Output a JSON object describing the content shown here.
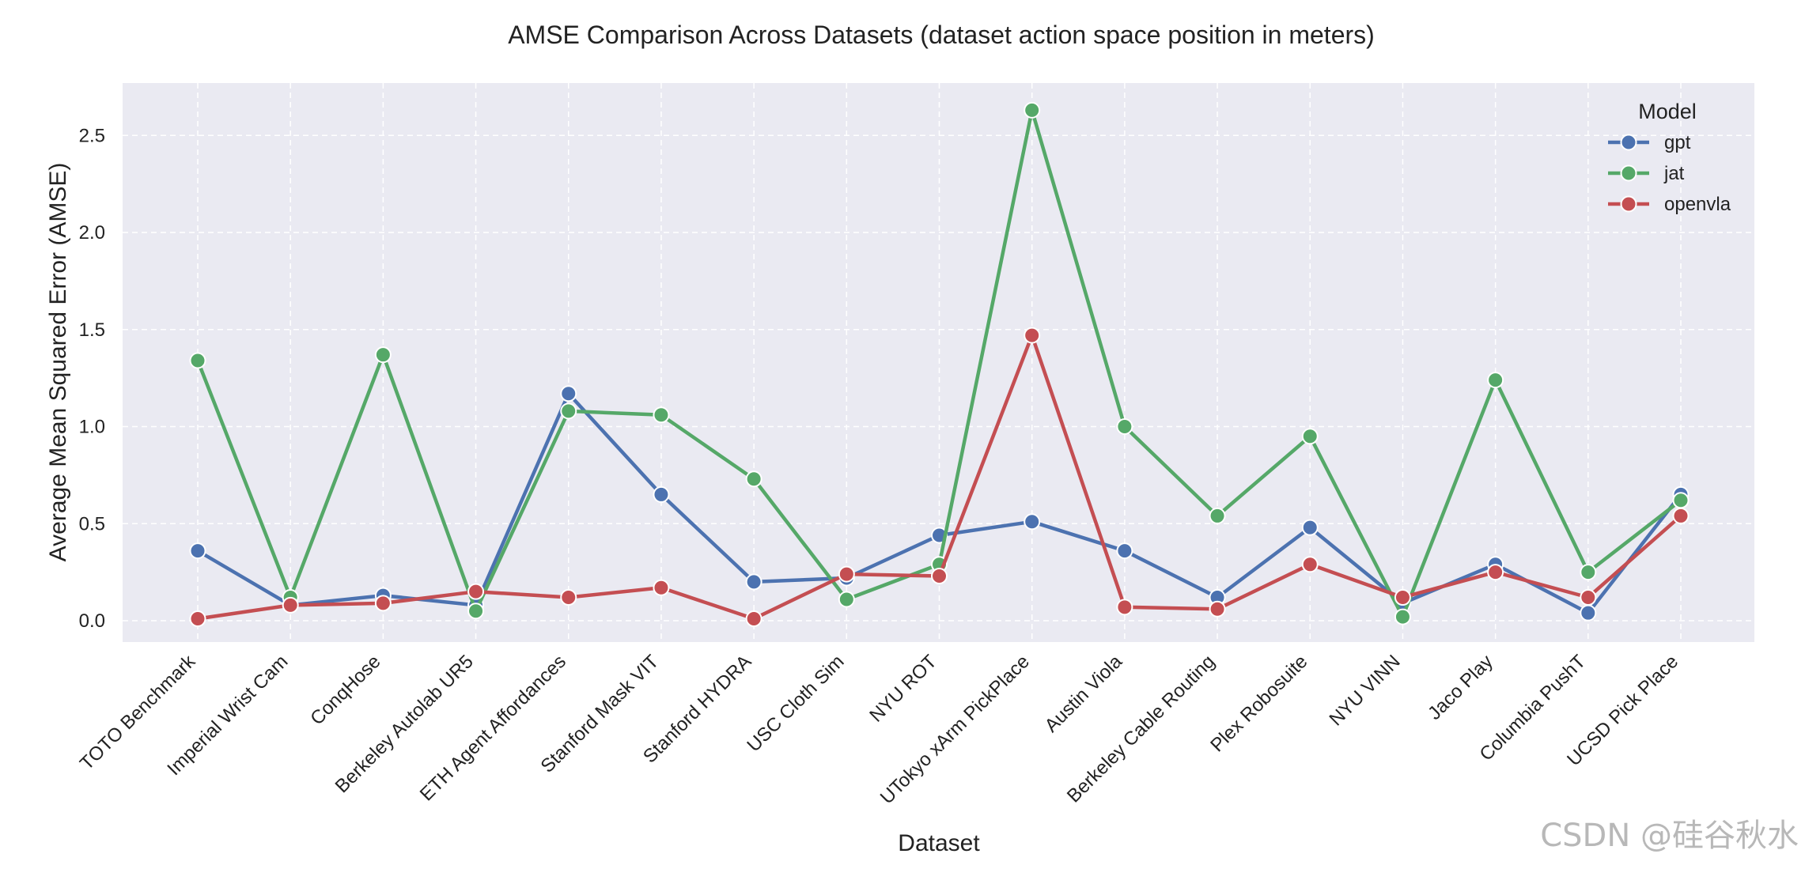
{
  "chart_data": {
    "type": "line",
    "title": "AMSE Comparison Across Datasets (dataset action space position in meters)",
    "xlabel": "Dataset",
    "ylabel": "Average Mean Squared Error (AMSE)",
    "ylim": [
      -0.11,
      2.77
    ],
    "yticks": [
      0.0,
      0.5,
      1.0,
      1.5,
      2.0,
      2.5
    ],
    "ytick_labels": [
      "0.0",
      "0.5",
      "1.0",
      "1.5",
      "2.0",
      "2.5"
    ],
    "grid": true,
    "categories": [
      "TOTO Benchmark",
      "Imperial Wrist Cam",
      "ConqHose",
      "Berkeley Autolab UR5",
      "ETH Agent Affordances",
      "Stanford Mask VIT",
      "Stanford HYDRA",
      "USC Cloth Sim",
      "NYU ROT",
      "UTokyo xArm PickPlace",
      "Austin Viola",
      "Berkeley Cable Routing",
      "Plex Robosuite",
      "NYU VINN",
      "Jaco Play",
      "Columbia PushT",
      "UCSD Pick Place"
    ],
    "legend": {
      "title": "Model",
      "position": "top-right"
    },
    "series": [
      {
        "name": "gpt",
        "color": "#4c72b0",
        "values": [
          0.36,
          0.08,
          0.13,
          0.08,
          1.17,
          0.65,
          0.2,
          0.22,
          0.44,
          0.51,
          0.36,
          0.12,
          0.48,
          0.09,
          0.29,
          0.04,
          0.65
        ]
      },
      {
        "name": "jat",
        "color": "#55a868",
        "values": [
          1.34,
          0.12,
          1.37,
          0.05,
          1.08,
          1.06,
          0.73,
          0.11,
          0.29,
          2.63,
          1.0,
          0.54,
          0.95,
          0.02,
          1.24,
          0.25,
          0.62
        ]
      },
      {
        "name": "openvla",
        "color": "#c44e52",
        "values": [
          0.01,
          0.08,
          0.09,
          0.15,
          0.12,
          0.17,
          0.01,
          0.24,
          0.23,
          1.47,
          0.07,
          0.06,
          0.29,
          0.12,
          0.25,
          0.12,
          0.54
        ]
      }
    ]
  },
  "watermark": "CSDN @硅谷秋水"
}
